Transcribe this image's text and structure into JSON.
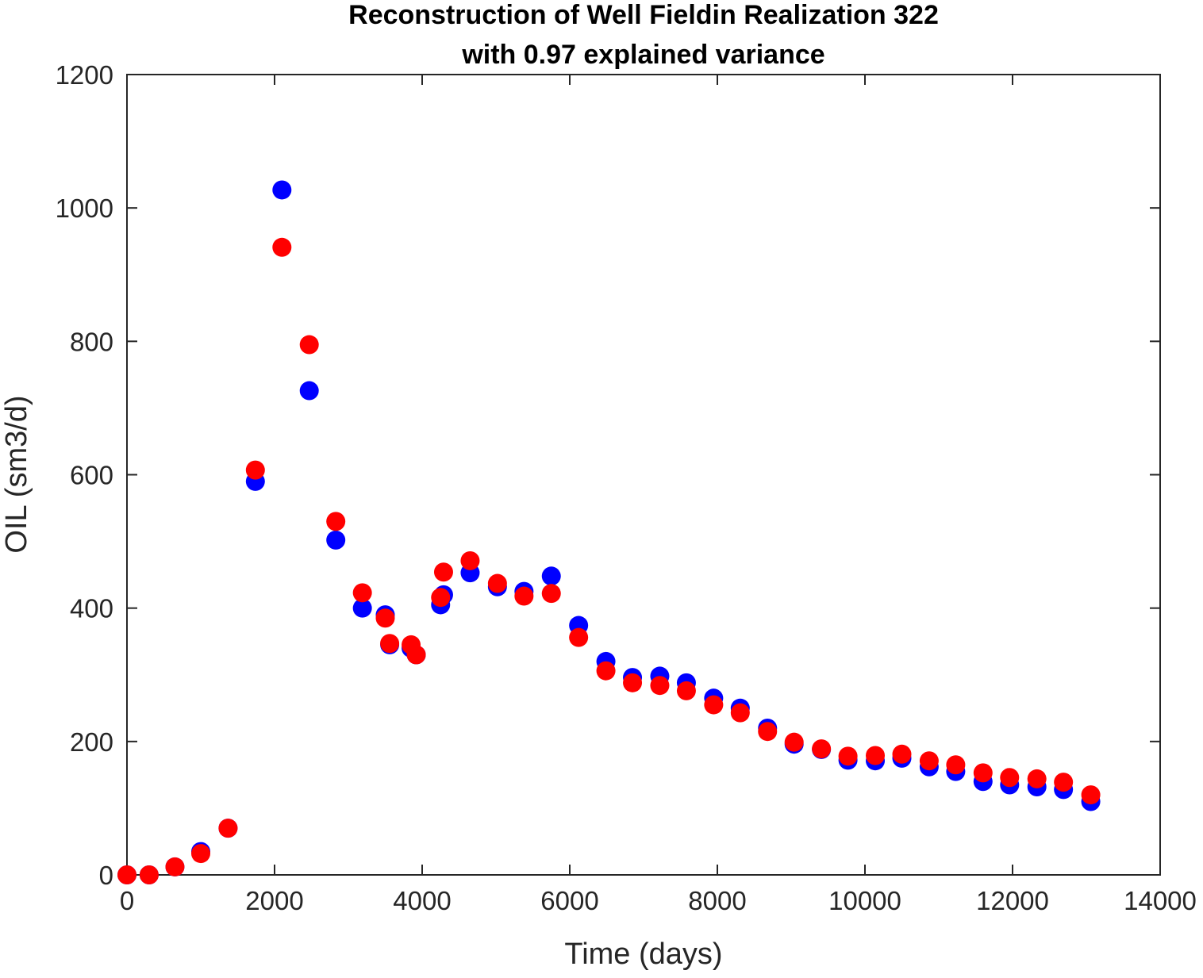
{
  "chart_data": {
    "type": "scatter",
    "title": "Reconstruction of Well Fieldin Realization 322",
    "subtitle": "with 0.97 explained variance",
    "xlabel": "Time (days)",
    "ylabel": "OIL (sm3/d)",
    "xlim": [
      0,
      14000
    ],
    "ylim": [
      0,
      1200
    ],
    "xticks": [
      0,
      2000,
      4000,
      6000,
      8000,
      10000,
      12000,
      14000
    ],
    "yticks": [
      0,
      200,
      400,
      600,
      800,
      1000,
      1200
    ],
    "grid": false,
    "legend": "none",
    "series": [
      {
        "color": "#0000ff",
        "x": [
          0,
          300,
          650,
          1000,
          1370,
          1740,
          2100,
          2470,
          2830,
          3190,
          3500,
          3560,
          3850,
          3920,
          4250,
          4290,
          4650,
          5020,
          5380,
          5750,
          6120,
          6490,
          6850,
          7220,
          7580,
          7950,
          8310,
          8680,
          9040,
          9410,
          9770,
          10140,
          10500,
          10870,
          11230,
          11600,
          11960,
          12330,
          12690,
          13060
        ],
        "y": [
          0,
          0,
          12,
          35,
          70,
          590,
          1027,
          726,
          502,
          400,
          390,
          345,
          340,
          330,
          405,
          420,
          453,
          432,
          425,
          448,
          374,
          320,
          296,
          298,
          288,
          265,
          250,
          220,
          196,
          188,
          172,
          171,
          175,
          162,
          155,
          140,
          135,
          132,
          128,
          110
        ]
      },
      {
        "color": "#ff0000",
        "x": [
          0,
          300,
          650,
          1000,
          1370,
          1740,
          2100,
          2470,
          2830,
          3190,
          3500,
          3560,
          3850,
          3920,
          4250,
          4290,
          4650,
          5020,
          5380,
          5750,
          6120,
          6490,
          6850,
          7220,
          7580,
          7950,
          8310,
          8680,
          9040,
          9410,
          9770,
          10140,
          10500,
          10870,
          11230,
          11600,
          11960,
          12330,
          12690,
          13060
        ],
        "y": [
          0,
          0,
          12,
          32,
          70,
          607,
          941,
          795,
          530,
          423,
          385,
          347,
          345,
          330,
          416,
          454,
          471,
          437,
          418,
          422,
          356,
          306,
          288,
          284,
          276,
          255,
          243,
          215,
          199,
          189,
          178,
          179,
          181,
          171,
          165,
          153,
          146,
          144,
          139,
          120
        ]
      }
    ]
  }
}
